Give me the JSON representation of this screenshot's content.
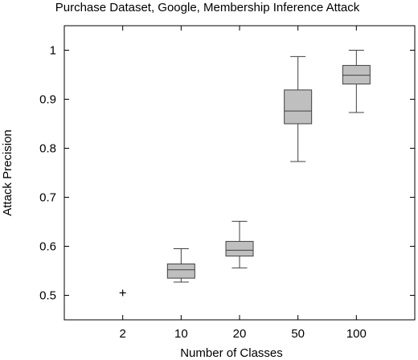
{
  "chart_data": {
    "type": "box",
    "title": "Purchase Dataset, Google, Membership Inference Attack",
    "xlabel": "Number of Classes",
    "ylabel": "Attack Precision",
    "categories": [
      "2",
      "10",
      "20",
      "50",
      "100"
    ],
    "ylim": [
      0.45,
      1.05
    ],
    "yticks": [
      0.5,
      0.6,
      0.7,
      0.8,
      0.9,
      1
    ],
    "ytick_labels": [
      "0.5",
      "0.6",
      "0.7",
      "0.8",
      "0.9",
      "1"
    ],
    "boxes": [
      {
        "category": "2",
        "min": 0.505,
        "q1": 0.505,
        "median": 0.505,
        "q3": 0.505,
        "max": 0.505,
        "point_only": true
      },
      {
        "category": "10",
        "min": 0.527,
        "q1": 0.535,
        "median": 0.552,
        "q3": 0.564,
        "max": 0.595
      },
      {
        "category": "20",
        "min": 0.556,
        "q1": 0.58,
        "median": 0.592,
        "q3": 0.61,
        "max": 0.651
      },
      {
        "category": "50",
        "min": 0.773,
        "q1": 0.85,
        "median": 0.876,
        "q3": 0.919,
        "max": 0.987
      },
      {
        "category": "100",
        "min": 0.873,
        "q1": 0.931,
        "median": 0.949,
        "q3": 0.969,
        "max": 1.0
      }
    ],
    "colors": {
      "box_fill": "#bfbfbf",
      "stroke": "#404040",
      "axis": "#000000"
    },
    "grid": false,
    "legend": "none"
  }
}
